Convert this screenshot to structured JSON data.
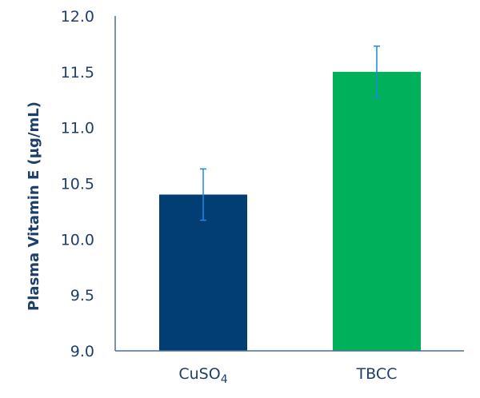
{
  "chart_data": {
    "type": "bar",
    "title": "",
    "xlabel": "",
    "ylabel": "Plasma Vitamin E (µg/mL)",
    "ylim": [
      9.0,
      12.0
    ],
    "yticks": [
      "9.0",
      "9.5",
      "10.0",
      "10.5",
      "11.0",
      "11.5",
      "12.0"
    ],
    "categories": [
      "CuSO4",
      "TBCC"
    ],
    "category_display": [
      {
        "main": "CuSO",
        "sub": "4"
      },
      {
        "main": "TBCC",
        "sub": ""
      }
    ],
    "values": [
      10.4,
      11.5
    ],
    "error": [
      0.23,
      0.23
    ],
    "colors": [
      "#023d74",
      "#00b05a"
    ],
    "error_color": "#1e88e5",
    "grid": false,
    "legend": null
  }
}
